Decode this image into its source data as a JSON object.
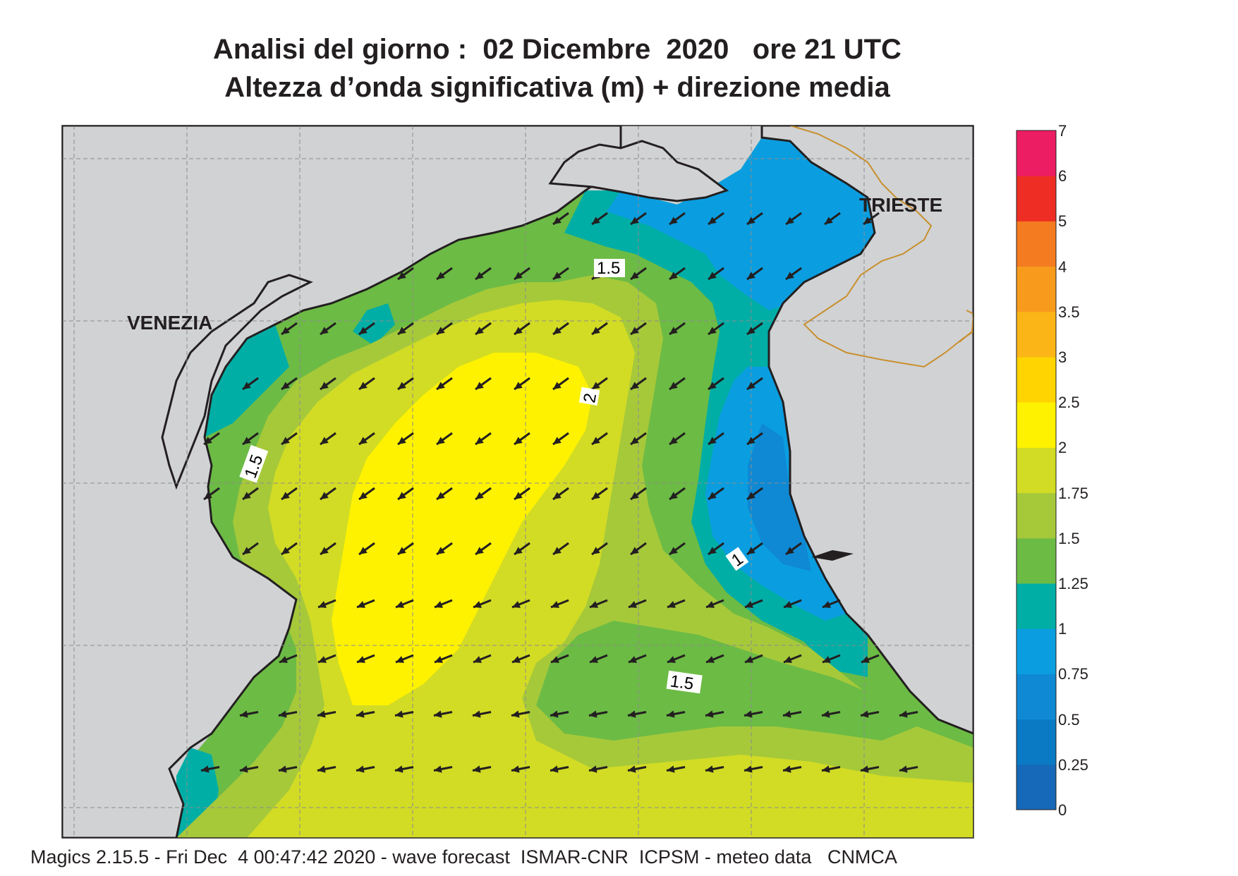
{
  "title": {
    "line1": "Analisi del giorno :  02 Dicembre  2020   ore 21 UTC",
    "line2": "Altezza d’onda significativa (m) + direzione media"
  },
  "map": {
    "cities": [
      "VENEZIA",
      "TRIESTE"
    ],
    "contour_labels": [
      "1.5",
      "2",
      "1.5",
      "1",
      "1.5"
    ],
    "colors": {
      "land": "#d1d2d4",
      "coast": "#231f20",
      "border": "#c8902e",
      "grid": "#8c8c8c"
    },
    "wave_direction": "from north-east toward south-west (arrows)"
  },
  "colorbar": {
    "ticks": [
      "7",
      "6",
      "5",
      "4",
      "3.5",
      "3",
      "2.5",
      "2",
      "1.75",
      "1.5",
      "1.25",
      "1",
      "0.75",
      "0.5",
      "0.25",
      "0"
    ],
    "bins": [
      {
        "from": 0,
        "to": 0.25,
        "color": "#1668b8"
      },
      {
        "from": 0.25,
        "to": 0.5,
        "color": "#0a7ac4"
      },
      {
        "from": 0.5,
        "to": 0.75,
        "color": "#0f89d4"
      },
      {
        "from": 0.75,
        "to": 1,
        "color": "#0a9ee0"
      },
      {
        "from": 1,
        "to": 1.25,
        "color": "#00aea6"
      },
      {
        "from": 1.25,
        "to": 1.5,
        "color": "#6cbb45"
      },
      {
        "from": 1.5,
        "to": 1.75,
        "color": "#a6c93a"
      },
      {
        "from": 1.75,
        "to": 2,
        "color": "#d2dc24"
      },
      {
        "from": 2,
        "to": 2.5,
        "color": "#fff200"
      },
      {
        "from": 2.5,
        "to": 3,
        "color": "#ffd400"
      },
      {
        "from": 3,
        "to": 3.5,
        "color": "#fbb516"
      },
      {
        "from": 3.5,
        "to": 4,
        "color": "#f89b1d"
      },
      {
        "from": 4,
        "to": 5,
        "color": "#f47b20"
      },
      {
        "from": 5,
        "to": 6,
        "color": "#ee2e24"
      },
      {
        "from": 6,
        "to": 7,
        "color": "#ec1d62"
      }
    ]
  },
  "footer": "Magics 2.15.5 - Fri Dec  4 00:47:42 2020 - wave forecast  ISMAR-CNR  ICPSM - meteo data   CNMCA"
}
